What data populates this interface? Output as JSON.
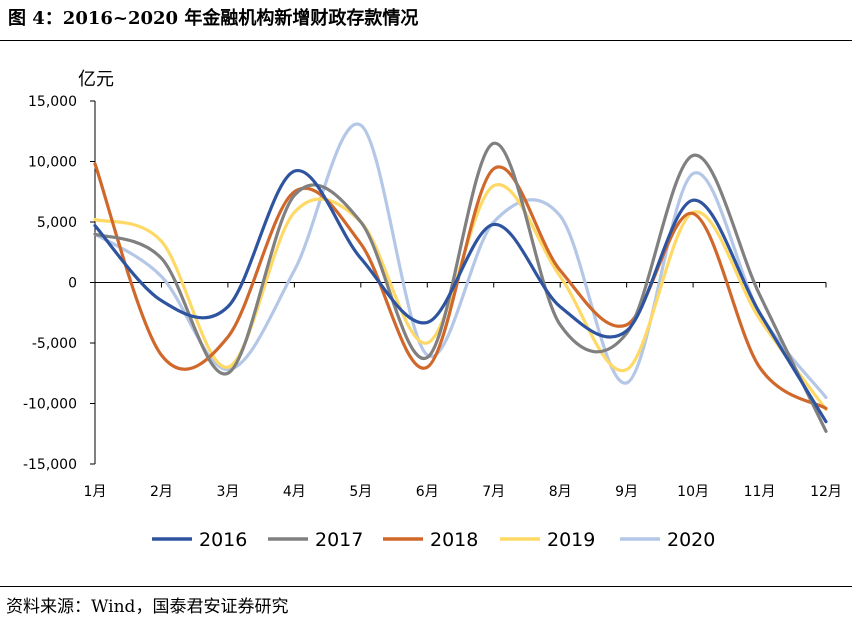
{
  "figure": {
    "title": "图 4：2016~2020 年金融机构新增财政存款情况",
    "source": "资料来源：Wind，国泰君安证券研究"
  },
  "chart_data": {
    "type": "line",
    "title": "",
    "xlabel": "",
    "ylabel": "亿元",
    "categories": [
      "1月",
      "2月",
      "3月",
      "4月",
      "5月",
      "6月",
      "7月",
      "8月",
      "9月",
      "10月",
      "11月",
      "12月"
    ],
    "ylim": [
      -15000,
      15000
    ],
    "yticks": [
      15000,
      10000,
      5000,
      0,
      -5000,
      -10000,
      -15000
    ],
    "ytick_labels": [
      "15,000",
      "10,000",
      "5,000",
      "0",
      "-5,000",
      "-10,000",
      "-15,000"
    ],
    "grid": false,
    "legend_position": "bottom",
    "series": [
      {
        "name": "2016",
        "color": "#2e54a0",
        "values": [
          4700,
          -1500,
          -2000,
          9200,
          2000,
          -3300,
          4800,
          -2000,
          -4000,
          6800,
          -2500,
          -11500
        ]
      },
      {
        "name": "2017",
        "color": "#808080",
        "values": [
          4000,
          2000,
          -7500,
          7200,
          5000,
          -6200,
          11500,
          -3500,
          -4200,
          10500,
          -1000,
          -12300
        ]
      },
      {
        "name": "2018",
        "color": "#d0682c",
        "values": [
          9800,
          -6000,
          -4500,
          7500,
          3200,
          -7000,
          9400,
          1000,
          -3500,
          5700,
          -7000,
          -10400
        ]
      },
      {
        "name": "2019",
        "color": "#ffd966",
        "values": [
          5200,
          3400,
          -7000,
          5800,
          5000,
          -5000,
          8000,
          500,
          -7200,
          5800,
          -3000,
          -10500
        ]
      },
      {
        "name": "2020",
        "color": "#b4c7e7",
        "values": [
          4000,
          500,
          -7200,
          1000,
          13000,
          -6000,
          5000,
          5500,
          -8300,
          9000,
          -2500,
          -9500
        ]
      }
    ]
  }
}
